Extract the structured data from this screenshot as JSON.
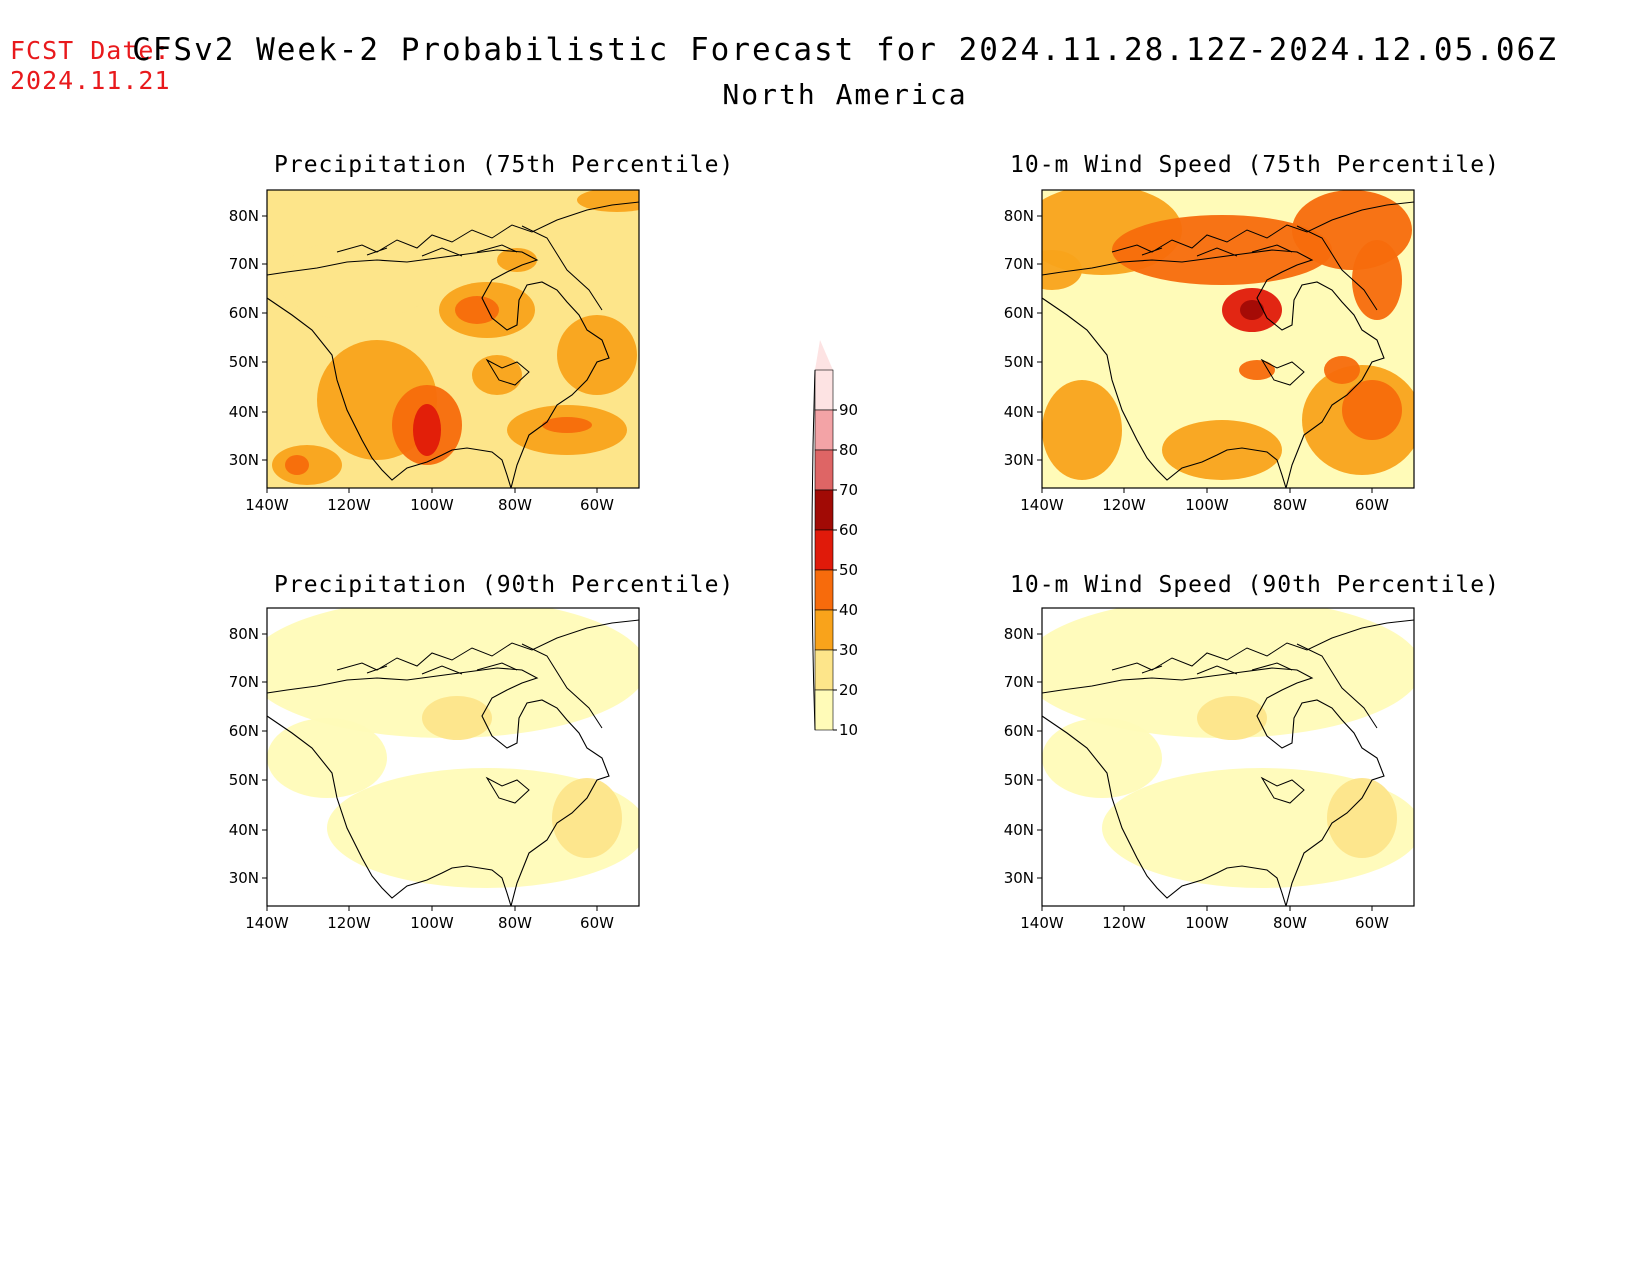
{
  "header": {
    "fcst_label": "FCST Date:",
    "fcst_date": "2024.11.21",
    "title": "CFSv2 Week-2 Probabilistic Forecast for 2024.11.28.12Z-2024.12.05.06Z",
    "subtitle": "North America"
  },
  "panels": [
    {
      "id": "precip75",
      "title": "Precipitation (75th Percentile)",
      "level": "high-moderate"
    },
    {
      "id": "wind75",
      "title": "10-m Wind Speed (75th Percentile)",
      "level": "high"
    },
    {
      "id": "precip90",
      "title": "Precipitation (90th Percentile)",
      "level": "low"
    },
    {
      "id": "wind90",
      "title": "10-m Wind Speed (90th Percentile)",
      "level": "low"
    }
  ],
  "axes": {
    "lat_labels": [
      "80N",
      "70N",
      "60N",
      "50N",
      "40N",
      "30N"
    ],
    "lon_labels": [
      "140W",
      "120W",
      "100W",
      "80W",
      "60W"
    ]
  },
  "colorbar": {
    "labels": [
      "10",
      "20",
      "30",
      "40",
      "50",
      "60",
      "70",
      "80",
      "90"
    ],
    "colors": [
      "#fffbb8",
      "#fde58a",
      "#f9a31b",
      "#f76b0c",
      "#e01a0a",
      "#a10a05",
      "#de6565",
      "#f3a3a6",
      "#fde3e3"
    ]
  }
}
